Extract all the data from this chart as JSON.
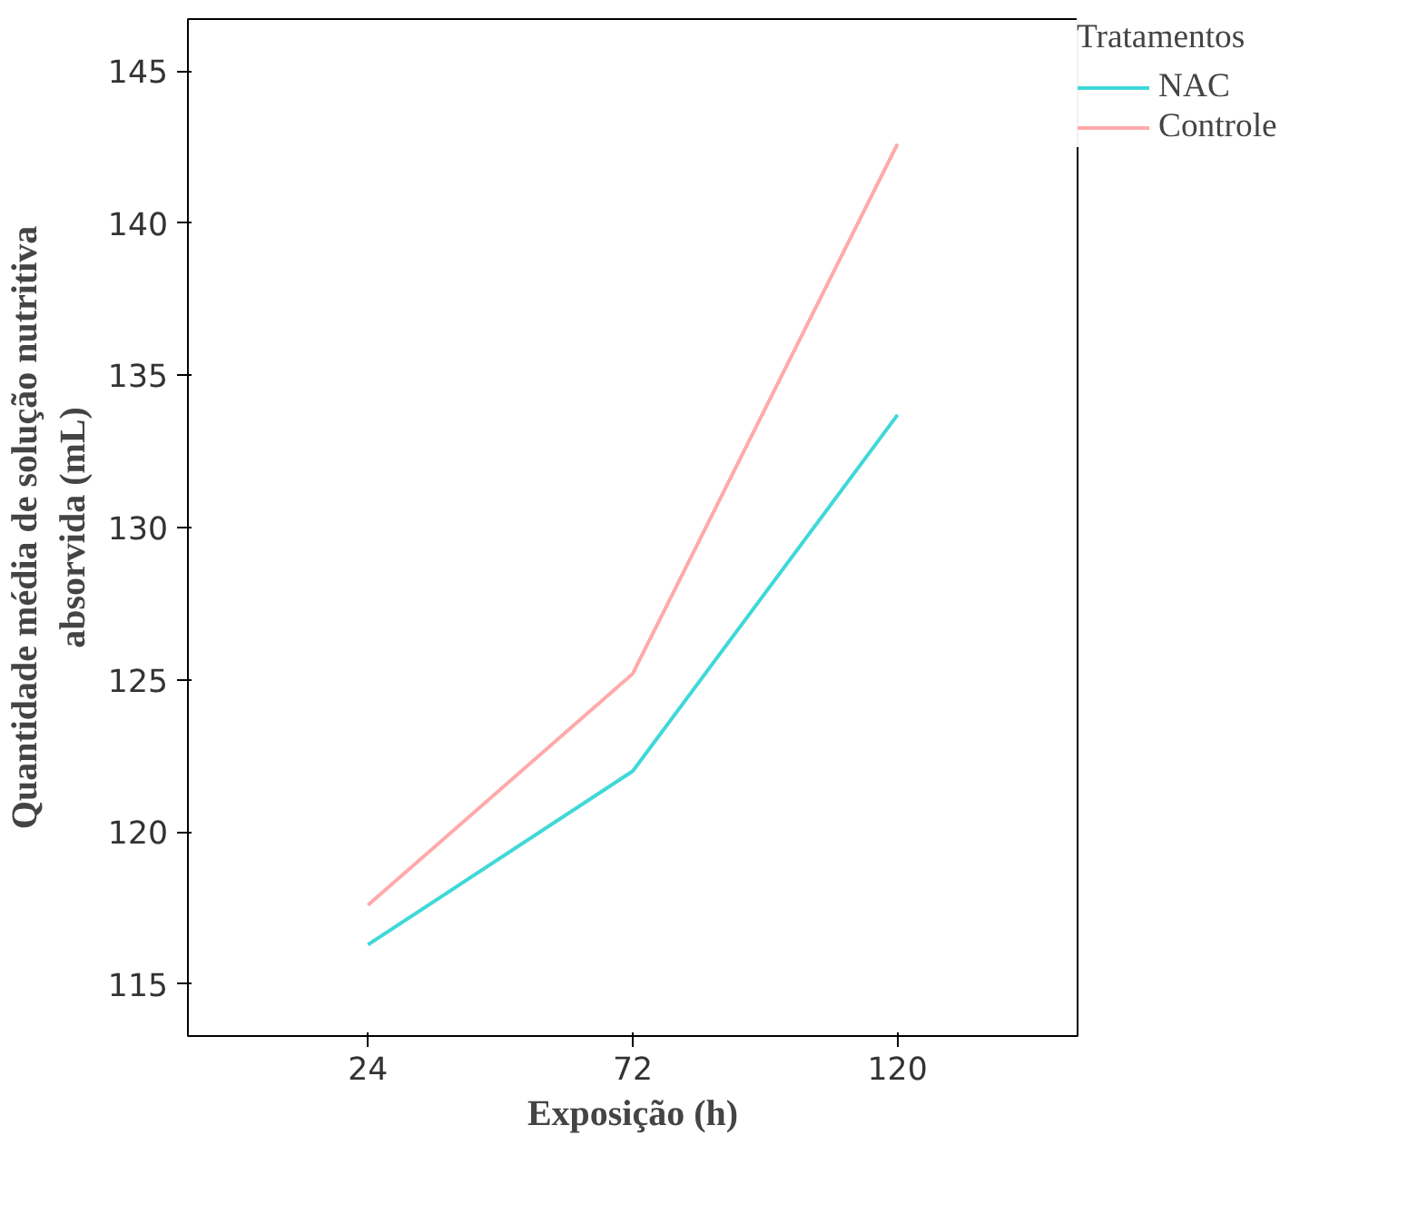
{
  "chart_data": {
    "type": "line",
    "xlabel": "Exposição (h)",
    "ylabel": "Quantidade média de solução nutritiva\nabsorvida (mL)",
    "legend_title": "Tratamentos",
    "categories": [
      "24",
      "72",
      "120"
    ],
    "series": [
      {
        "name": "NAC",
        "color": "#40d8d8",
        "values": [
          116.3,
          122.0,
          133.7
        ]
      },
      {
        "name": "Controle",
        "color": "#ffaaaa",
        "values": [
          117.6,
          125.2,
          142.6
        ]
      }
    ],
    "ylim": [
      113.3,
      146.7
    ],
    "yticks": [
      115,
      120,
      125,
      130,
      135,
      140,
      145
    ],
    "grid": false,
    "legend": "top right",
    "marker": "none",
    "line_style": "solid"
  }
}
